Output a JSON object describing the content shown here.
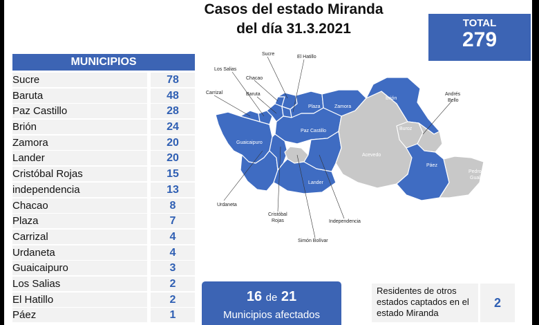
{
  "title_line1": "Casos del estado Miranda",
  "title_line2": "del día 31.3.2021",
  "total": {
    "label": "TOTAL",
    "value": "279"
  },
  "table": {
    "header": "MUNICIPIOS",
    "rows": [
      {
        "name": "Sucre",
        "value": "78"
      },
      {
        "name": "Baruta",
        "value": "48"
      },
      {
        "name": "Paz Castillo",
        "value": "28"
      },
      {
        "name": "Brión",
        "value": "24"
      },
      {
        "name": "Zamora",
        "value": "20"
      },
      {
        "name": "Lander",
        "value": "20"
      },
      {
        "name": "Cristóbal Rojas",
        "value": "15"
      },
      {
        "name": "independencia",
        "value": "13"
      },
      {
        "name": "Chacao",
        "value": "8"
      },
      {
        "name": "Plaza",
        "value": "7"
      },
      {
        "name": "Carrizal",
        "value": "4"
      },
      {
        "name": "Urdaneta",
        "value": "4"
      },
      {
        "name": "Guaicaipuro",
        "value": "3"
      },
      {
        "name": "Los Salias",
        "value": "2"
      },
      {
        "name": "El Hatillo",
        "value": "2"
      },
      {
        "name": "Páez",
        "value": "1"
      }
    ]
  },
  "map": {
    "colors": {
      "affected": "#3f6cc2",
      "unaffected": "#c8c8c8",
      "border": "#ffffff"
    },
    "labels": {
      "sucre": "Sucre",
      "el_hatillo": "El Hatillo",
      "los_salias": "Los Salias",
      "chacao": "Chacao",
      "carrizal": "Carrizal",
      "baruta": "Baruta",
      "plaza": "Plaza",
      "zamora": "Zamora",
      "brion": "Brión",
      "andres_bello_1": "Andrés",
      "andres_bello_2": "Bello",
      "buroz": "Buroz",
      "paz_castillo": "Paz Castillo",
      "guaicaipuro": "Guaicaipuro",
      "acevedo": "Acevedo",
      "paez": "Páez",
      "pedro_gual_1": "Pedro",
      "pedro_gual_2": "Gual",
      "lander": "Lander",
      "urdaneta": "Urdaneta",
      "cristobal_rojas_1": "Cristóbal",
      "cristobal_rojas_2": "Rojas",
      "independencia": "Independencia",
      "simon_bolivar": "Simón Bolívar"
    }
  },
  "affected": {
    "count": "16",
    "de": "de",
    "of": "21",
    "label": "Municipios afectados"
  },
  "residents": {
    "text_line1": "Residentes de otros",
    "text_line2": "estados captados en el",
    "text_line3": "estado Miranda",
    "value": "2"
  }
}
